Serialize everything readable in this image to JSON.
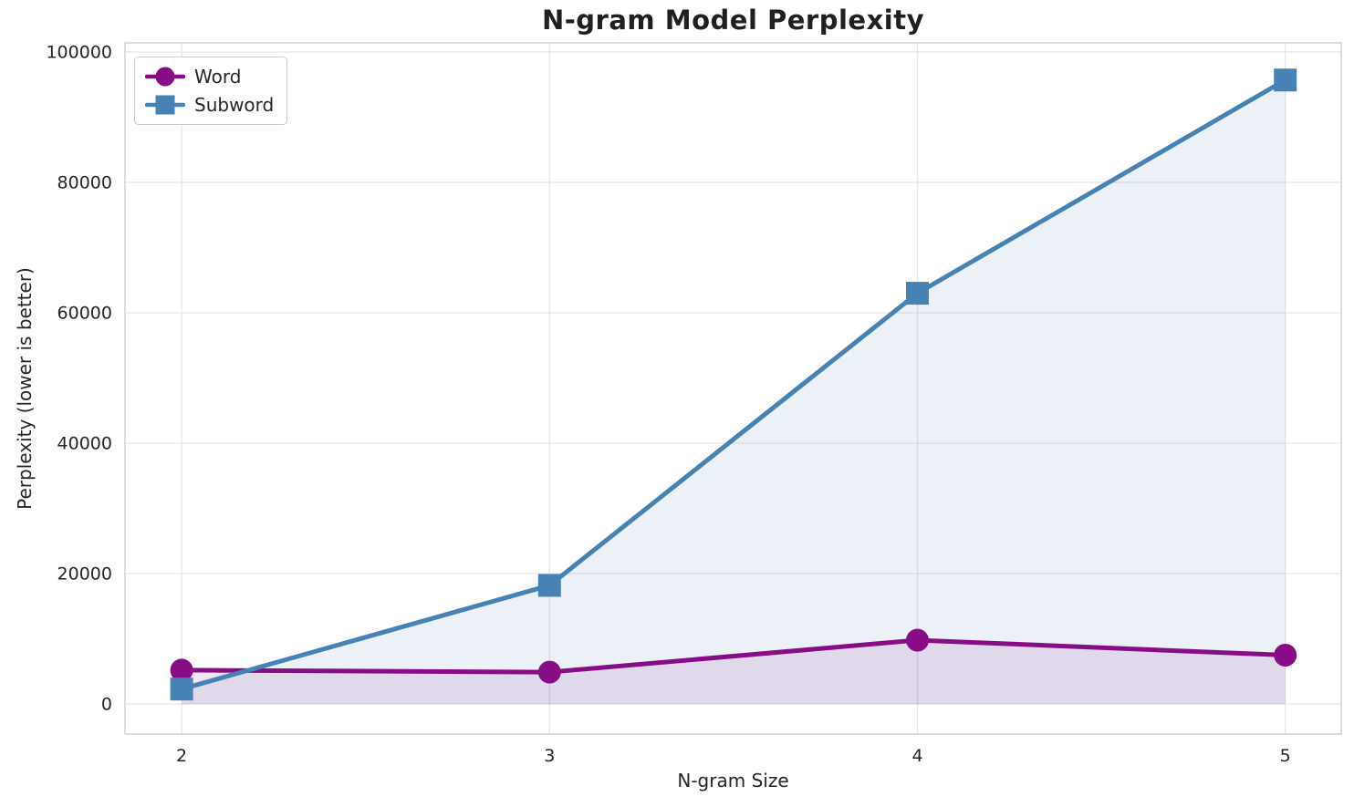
{
  "chart_data": {
    "type": "line",
    "title": "N-gram Model Perplexity",
    "xlabel": "N-gram Size",
    "ylabel": "Perplexity (lower is better)",
    "x": [
      2,
      3,
      4,
      5
    ],
    "series": [
      {
        "name": "Word",
        "color": "#870D87",
        "marker": "circle",
        "values": [
          5200,
          4900,
          9800,
          7500
        ]
      },
      {
        "name": "Subword",
        "color": "#4682B4",
        "marker": "square",
        "values": [
          2300,
          18200,
          63000,
          95700
        ]
      }
    ],
    "fill_to_zero": true,
    "fill_opacity": 0.11,
    "xlim": [
      1.846,
      5.152
    ],
    "ylim": [
      -4600,
      101400
    ],
    "xticks": [
      {
        "value": 2,
        "label": "2"
      },
      {
        "value": 3,
        "label": "3"
      },
      {
        "value": 4,
        "label": "4"
      },
      {
        "value": 5,
        "label": "5"
      }
    ],
    "yticks": [
      {
        "value": 0,
        "label": "0"
      },
      {
        "value": 20000,
        "label": "20000"
      },
      {
        "value": 40000,
        "label": "40000"
      },
      {
        "value": 60000,
        "label": "60000"
      },
      {
        "value": 80000,
        "label": "80000"
      },
      {
        "value": 100000,
        "label": "100000"
      }
    ],
    "grid": true,
    "legend_position": "upper-left",
    "theme": {
      "background": "#FFFFFF",
      "grid_color": "#E5E5E5",
      "spine_color": "#CDCDCD",
      "text_color": "#262626"
    }
  }
}
